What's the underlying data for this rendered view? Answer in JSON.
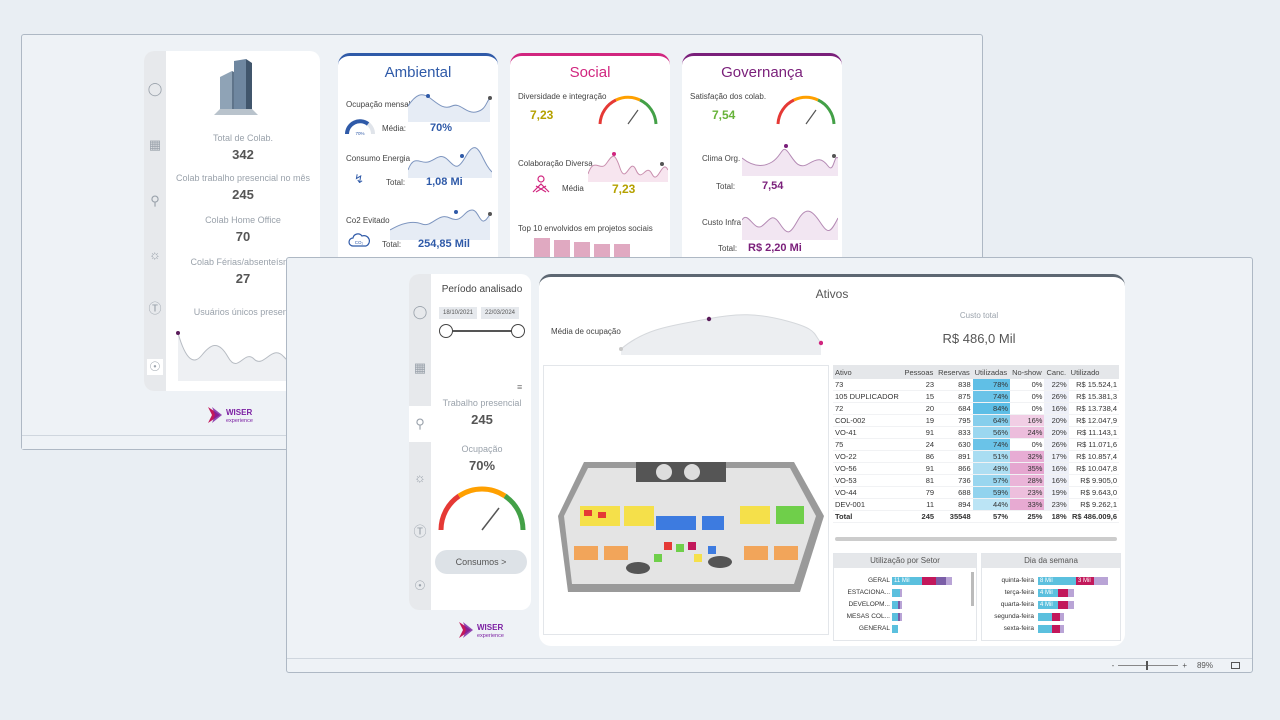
{
  "back": {
    "stats": [
      {
        "label": "Total de Colab.",
        "value": "342"
      },
      {
        "label": "Colab trabalho presencial no mês",
        "value": "245"
      },
      {
        "label": "Colab Home Office",
        "value": "70"
      },
      {
        "label": "Colab Férias/absenteísmo",
        "value": "27"
      }
    ],
    "unique_users_label": "Usuários únicos presenc",
    "logo_word": "WISER",
    "logo_sub": "experience",
    "ambiental": {
      "title": "Ambiental",
      "color": "#2f5aa8",
      "ocupacao_label": "Ocupação mensal",
      "ocupacao_gauge": "70%",
      "media_label": "Média:",
      "media_value": "70%",
      "energia_label": "Consumo Energia",
      "energia_total_label": "Total:",
      "energia_total": "1,08 Mi",
      "co2_label": "Co2 Evitado",
      "co2_total_label": "Total:",
      "co2_total": "254,85 Mil",
      "co2_icon_text": "CO₂"
    },
    "social": {
      "title": "Social",
      "color": "#d1267f",
      "diversidade_label": "Diversidade e integração",
      "diversidade_value": "7,23",
      "colab_label": "Colaboração Diversa",
      "media_label": "Média",
      "media_value": "7,23",
      "top10_label": "Top 10 envolvidos em projetos sociais"
    },
    "governanca": {
      "title": "Governança",
      "color": "#7a1f7a",
      "satisfacao_label": "Satisfação dos colab.",
      "satisfacao_value": "7,54",
      "clima_label": "Clima Org.",
      "clima_total_label": "Total:",
      "clima_total": "7,54",
      "custo_label": "Custo Infra",
      "custo_total_label": "Total:",
      "custo_total": "R$ 2,20 Mi"
    }
  },
  "front": {
    "periodo_title": "Período analisado",
    "date_start": "18/10/2021",
    "date_end": "22/03/2024",
    "trabalho_label": "Trabalho presencial",
    "trabalho_value": "245",
    "ocupacao_label": "Ocupação",
    "ocupacao_value": "70%",
    "consumos_button": "Consumos >",
    "logo_word": "WISER",
    "logo_sub": "experience",
    "ativos_title": "Ativos",
    "media_label": "Média de ocupação",
    "custo_label": "Custo total",
    "custo_value": "R$ 486,0 Mil",
    "table": {
      "headers": [
        "Ativo",
        "Pessoas",
        "Reservas",
        "Utilizadas",
        "No-show",
        "Canc.",
        "Utilizado"
      ],
      "rows": [
        [
          "73",
          "23",
          "838",
          "78%",
          "0%",
          "22%",
          "R$ 15.524,1"
        ],
        [
          "105 DUPLICADOR",
          "15",
          "875",
          "74%",
          "0%",
          "26%",
          "R$ 15.381,3"
        ],
        [
          "72",
          "20",
          "684",
          "84%",
          "0%",
          "16%",
          "R$ 13.738,4"
        ],
        [
          "COL-002",
          "19",
          "795",
          "64%",
          "16%",
          "20%",
          "R$ 12.047,9"
        ],
        [
          "VO-41",
          "91",
          "833",
          "56%",
          "24%",
          "20%",
          "R$ 11.143,1"
        ],
        [
          "75",
          "24",
          "630",
          "74%",
          "0%",
          "26%",
          "R$ 11.071,6"
        ],
        [
          "VO-22",
          "86",
          "891",
          "51%",
          "32%",
          "17%",
          "R$ 10.857,4"
        ],
        [
          "VO-56",
          "91",
          "866",
          "49%",
          "35%",
          "16%",
          "R$ 10.047,8"
        ],
        [
          "VO-53",
          "81",
          "736",
          "57%",
          "28%",
          "16%",
          "R$ 9.905,0"
        ],
        [
          "VO-44",
          "79",
          "688",
          "59%",
          "23%",
          "19%",
          "R$ 9.643,0"
        ],
        [
          "DEV-001",
          "11",
          "894",
          "44%",
          "33%",
          "23%",
          "R$ 9.262,1"
        ]
      ],
      "total": [
        "Total",
        "245",
        "35548",
        "57%",
        "25%",
        "18%",
        "R$ 486.009,6"
      ]
    },
    "setor": {
      "title": "Utilização por Setor",
      "rows": [
        {
          "label": "GERAL",
          "text": "11 Mil"
        },
        {
          "label": "ESTACIONA...",
          "text": ""
        },
        {
          "label": "DEVELOPM...",
          "text": ""
        },
        {
          "label": "MESAS COL...",
          "text": ""
        },
        {
          "label": "GENERAL",
          "text": ""
        }
      ]
    },
    "dia": {
      "title": "Dia da semana",
      "rows": [
        {
          "label": "quinta-feira",
          "text": "8 Mil",
          "text2": "3 Mil"
        },
        {
          "label": "terça-feira",
          "text": "4 Mil",
          "text2": ""
        },
        {
          "label": "quarta-feira",
          "text": "4 Mil",
          "text2": ""
        },
        {
          "label": "segunda-feira",
          "text": "",
          "text2": ""
        },
        {
          "label": "sexta-feira",
          "text": "",
          "text2": ""
        }
      ]
    },
    "zoom_value": "89%",
    "zoom_minus": "-",
    "zoom_plus": "+"
  }
}
